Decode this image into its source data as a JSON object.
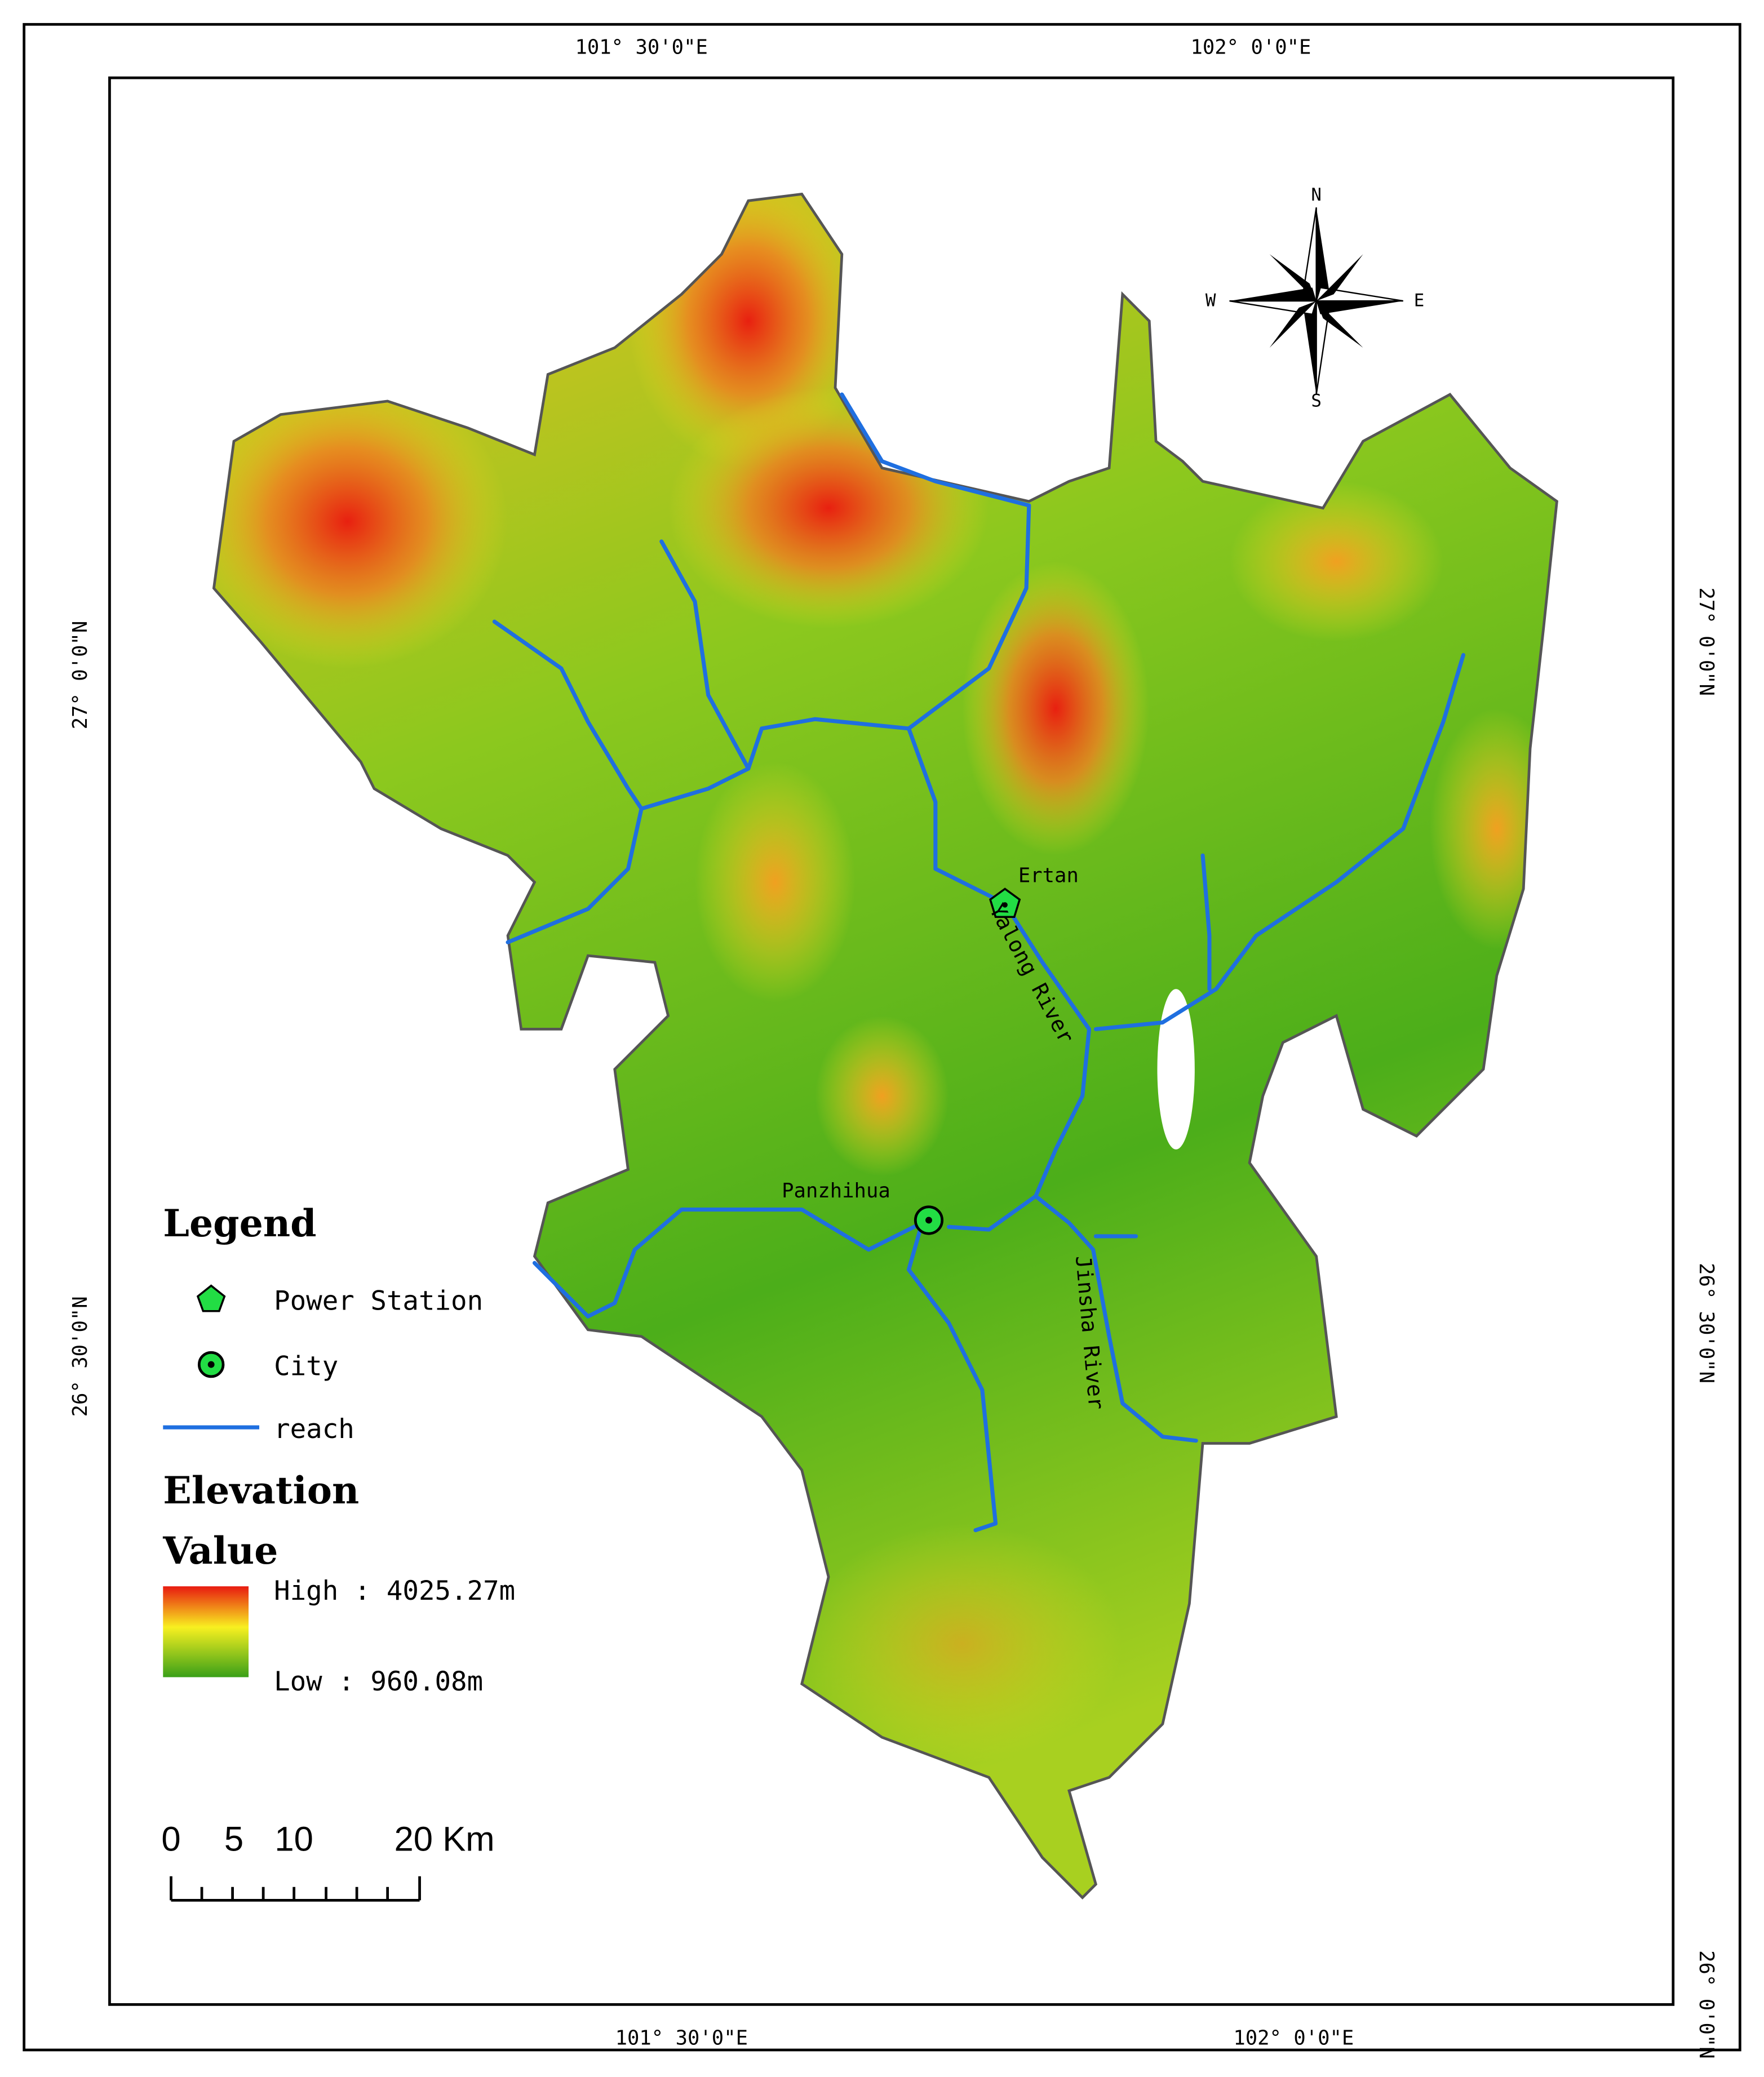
{
  "graticule": {
    "top": [
      "101° 30'0\"E",
      "102° 0'0\"E"
    ],
    "bottom": [
      "101° 30'0\"E",
      "102° 0'0\"E"
    ],
    "left": [
      "27° 0'0\"N",
      "26° 30'0\"N"
    ],
    "right": [
      "27° 0'0\"N",
      "26° 30'0\"N",
      "26° 0'0\"N"
    ]
  },
  "places": [
    "Ertan",
    "Panzhihua"
  ],
  "rivers": [
    "Yalong River",
    "Jinsha River"
  ],
  "compass": {
    "n": "N",
    "s": "S",
    "e": "E",
    "w": "W"
  },
  "legend": {
    "title": "Legend",
    "items": [
      "Power Station",
      "City",
      "reach"
    ],
    "elevation_title": "Elevation",
    "value_label": "Value",
    "high": "High : 4025.27m",
    "low": "Low : 960.08m"
  },
  "scale_bar": [
    "0",
    "5",
    "10",
    "20 Km"
  ]
}
